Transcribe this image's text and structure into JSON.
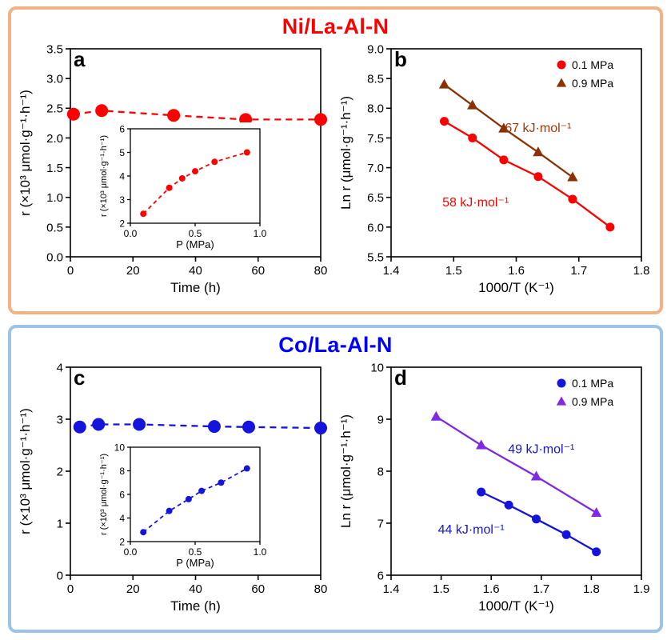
{
  "page": {
    "background": "#ffffff"
  },
  "sections": [
    {
      "title": "Ni/La-Al-N",
      "title_color": "#FF0000",
      "border_color": "#F4B183"
    },
    {
      "title": "Co/La-Al-N",
      "title_color": "#0000FF",
      "border_color": "#9DC3E6"
    }
  ],
  "chart_data": [
    {
      "panel": "a",
      "type": "scatter",
      "xlabel": "Time (h)",
      "ylabel": "r (×10³ μmol·g⁻¹·h⁻¹)",
      "xlim": [
        0,
        80
      ],
      "xticks": [
        0,
        20,
        40,
        60,
        80
      ],
      "xtick_decimals": 0,
      "ylim": [
        0.0,
        3.5
      ],
      "yticks": [
        0.0,
        0.5,
        1.0,
        1.5,
        2.0,
        2.5,
        3.0,
        3.5
      ],
      "ytick_decimals": 1,
      "grid": false,
      "series": [
        {
          "color": "#FF0000",
          "marker": "circle",
          "marker_size": 8,
          "line": "dashed",
          "x": [
            1,
            10,
            33,
            56,
            80
          ],
          "y": [
            2.4,
            2.46,
            2.38,
            2.31,
            2.31
          ]
        }
      ],
      "inset": {
        "xlabel": "P (MPa)",
        "ylabel": "r (×10³ μmol·g⁻¹·h⁻¹)",
        "xlim": [
          0.0,
          1.0
        ],
        "xticks": [
          0.0,
          0.5,
          1.0
        ],
        "xtick_decimals": 1,
        "ylim": [
          2,
          6
        ],
        "yticks": [
          2,
          3,
          4,
          5,
          6
        ],
        "ytick_decimals": 0,
        "series": [
          {
            "color": "#FF0000",
            "marker": "circle",
            "marker_size": 4,
            "line": "dashed",
            "x": [
              0.1,
              0.3,
              0.4,
              0.5,
              0.65,
              0.9
            ],
            "y": [
              2.4,
              3.5,
              3.9,
              4.2,
              4.6,
              5.0
            ]
          }
        ]
      }
    },
    {
      "panel": "b",
      "type": "scatter",
      "xlabel": "1000/T (K⁻¹)",
      "ylabel": "Ln r (μmol·g⁻¹·h⁻¹)",
      "xlim": [
        1.4,
        1.8
      ],
      "xticks": [
        1.4,
        1.5,
        1.6,
        1.7,
        1.8
      ],
      "xtick_decimals": 1,
      "ylim": [
        5.5,
        9.0
      ],
      "yticks": [
        5.5,
        6.0,
        6.5,
        7.0,
        7.5,
        8.0,
        8.5,
        9.0
      ],
      "ytick_decimals": 1,
      "legend": {
        "show": true,
        "position": "top-right"
      },
      "series": [
        {
          "name": "0.1 MPa",
          "color": "#FF0000",
          "marker": "circle",
          "marker_size": 5.5,
          "line": "solid",
          "x": [
            1.485,
            1.53,
            1.58,
            1.635,
            1.69,
            1.75
          ],
          "y": [
            7.78,
            7.5,
            7.13,
            6.85,
            6.47,
            6.0
          ]
        },
        {
          "name": "0.9 MPa",
          "color": "#8B3103",
          "marker": "triangle",
          "marker_size": 7,
          "line": "solid",
          "x": [
            1.485,
            1.53,
            1.58,
            1.635,
            1.69
          ],
          "y": [
            8.4,
            8.05,
            7.66,
            7.26,
            6.84
          ]
        }
      ],
      "annotations": [
        {
          "text": "67 kJ·mol⁻¹",
          "color": "#A63603",
          "x": 1.635,
          "y": 7.6
        },
        {
          "text": "58 kJ·mol⁻¹",
          "color": "#FF0000",
          "x": 1.535,
          "y": 6.35
        }
      ]
    },
    {
      "panel": "c",
      "type": "scatter",
      "xlabel": "Time (h)",
      "ylabel": "r (×10³ μmol·g⁻¹·h⁻¹)",
      "xlim": [
        0,
        80
      ],
      "xticks": [
        0,
        20,
        40,
        60,
        80
      ],
      "xtick_decimals": 0,
      "ylim": [
        0,
        4
      ],
      "yticks": [
        0,
        1,
        2,
        3,
        4
      ],
      "ytick_decimals": 0,
      "grid": false,
      "series": [
        {
          "color": "#1414DC",
          "marker": "circle",
          "marker_size": 8,
          "line": "dashed",
          "x": [
            3,
            9,
            22,
            46,
            57,
            80
          ],
          "y": [
            2.85,
            2.9,
            2.9,
            2.86,
            2.85,
            2.83
          ]
        }
      ],
      "inset": {
        "xlabel": "P (MPa)",
        "ylabel": "r (×10³ μmol·g⁻¹·h⁻¹)",
        "xlim": [
          0.0,
          1.0
        ],
        "xticks": [
          0.0,
          0.5,
          1.0
        ],
        "xtick_decimals": 1,
        "ylim": [
          2,
          10
        ],
        "yticks": [
          2,
          4,
          6,
          8,
          10
        ],
        "ytick_decimals": 0,
        "series": [
          {
            "color": "#1414DC",
            "marker": "circle",
            "marker_size": 4,
            "line": "dashed",
            "x": [
              0.1,
              0.3,
              0.45,
              0.55,
              0.7,
              0.9
            ],
            "y": [
              2.8,
              4.6,
              5.6,
              6.3,
              7.0,
              8.2
            ]
          }
        ]
      }
    },
    {
      "panel": "d",
      "type": "scatter",
      "xlabel": "1000/T (K⁻¹)",
      "ylabel": "Ln r (μmol·g⁻¹·h⁻¹)",
      "xlim": [
        1.4,
        1.9
      ],
      "xticks": [
        1.4,
        1.5,
        1.6,
        1.7,
        1.8,
        1.9
      ],
      "xtick_decimals": 1,
      "ylim": [
        6,
        10
      ],
      "yticks": [
        6,
        7,
        8,
        9,
        10
      ],
      "ytick_decimals": 0,
      "legend": {
        "show": true,
        "position": "top-right"
      },
      "series": [
        {
          "name": "0.1 MPa",
          "color": "#1414DC",
          "marker": "circle",
          "marker_size": 5.5,
          "line": "solid",
          "x": [
            1.58,
            1.635,
            1.69,
            1.75,
            1.81
          ],
          "y": [
            7.6,
            7.35,
            7.08,
            6.78,
            6.45
          ]
        },
        {
          "name": "0.9 MPa",
          "color": "#7F2AE2",
          "marker": "triangle",
          "marker_size": 7,
          "line": "solid",
          "x": [
            1.49,
            1.58,
            1.69,
            1.81
          ],
          "y": [
            9.05,
            8.5,
            7.9,
            7.2
          ]
        }
      ],
      "annotations": [
        {
          "text": "49 kJ·mol⁻¹",
          "color": "#1414DC",
          "x": 1.7,
          "y": 8.35
        },
        {
          "text": "44 kJ·mol⁻¹",
          "color": "#1414DC",
          "x": 1.56,
          "y": 6.8
        }
      ]
    }
  ]
}
